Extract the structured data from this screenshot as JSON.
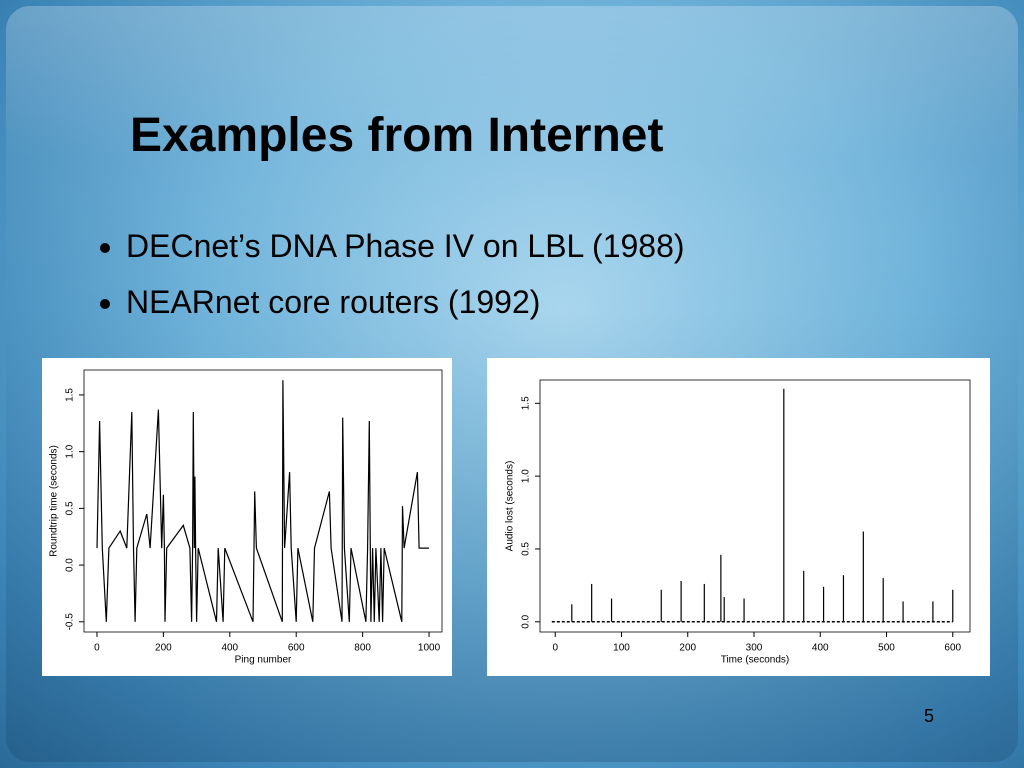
{
  "slide": {
    "title": "Examples from Internet",
    "bullets": [
      "DECnet’s DNA Phase IV on LBL (1988)",
      "NEARnet core routers (1992)"
    ],
    "page_number": "5"
  },
  "chart_data": [
    {
      "type": "line",
      "x_label": "Ping number",
      "y_label": "Roundtrip time (seconds)",
      "color": "#000000",
      "xlim": [
        -39,
        1039
      ],
      "xticks": [
        0,
        200,
        400,
        600,
        800,
        1000
      ],
      "ylim": [
        -0.59,
        1.72
      ],
      "yticks": [
        -0.5,
        {
          "value": 0,
          "label": "0.0"
        },
        0.5,
        {
          "value": 1,
          "label": "1.0"
        },
        1.5
      ],
      "x": [
        0,
        8,
        16,
        28,
        36,
        70,
        90,
        105,
        110,
        115,
        120,
        150,
        160,
        185,
        195,
        200,
        203,
        205,
        210,
        260,
        280,
        285,
        288,
        290,
        293,
        295,
        297,
        300,
        305,
        360,
        365,
        380,
        385,
        470,
        473,
        475,
        480,
        558,
        560,
        565,
        580,
        585,
        600,
        605,
        650,
        655,
        700,
        705,
        738,
        740,
        745,
        760,
        765,
        810,
        815,
        820,
        823,
        825,
        830,
        835,
        840,
        850,
        855,
        860,
        865,
        918,
        920,
        925,
        965,
        970,
        1000
      ],
      "values": [
        0.15,
        1.27,
        0.15,
        -0.5,
        0.15,
        0.3,
        0.15,
        1.35,
        0.15,
        -0.5,
        0.15,
        0.45,
        0.15,
        1.37,
        0.15,
        0.62,
        0.15,
        -0.5,
        0.15,
        0.35,
        0.15,
        -0.5,
        0.15,
        1.35,
        0.15,
        0.78,
        0.15,
        -0.5,
        0.15,
        -0.5,
        0.15,
        -0.5,
        0.15,
        -0.5,
        0.15,
        0.65,
        0.15,
        -0.5,
        1.63,
        0.15,
        0.82,
        0.15,
        -0.5,
        0.15,
        -0.5,
        0.15,
        0.65,
        0.15,
        -0.5,
        1.3,
        0.15,
        -0.5,
        0.15,
        -0.5,
        0.15,
        1.27,
        0.15,
        -0.5,
        0.15,
        -0.5,
        0.15,
        -0.5,
        0.15,
        -0.5,
        0.15,
        -0.5,
        0.52,
        0.15,
        0.82,
        0.15,
        0.15
      ]
    },
    {
      "type": "stem",
      "x_label": "Time (seconds)",
      "y_label": "Audio lost (seconds)",
      "color": "#000000",
      "xlim": [
        -23,
        626
      ],
      "xticks": [
        0,
        100,
        200,
        300,
        400,
        500,
        600
      ],
      "ylim": [
        -0.07,
        1.66
      ],
      "yticks": [
        {
          "value": 0,
          "label": "0.0"
        },
        0.5,
        {
          "value": 1,
          "label": "1.0"
        },
        1.5
      ],
      "x": [
        25,
        55,
        85,
        160,
        190,
        225,
        250,
        255,
        285,
        345,
        375,
        405,
        435,
        465,
        495,
        525,
        570,
        600
      ],
      "values": [
        0.12,
        0.26,
        0.16,
        0.22,
        0.28,
        0.26,
        0.46,
        0.17,
        0.16,
        1.6,
        0.35,
        0.24,
        0.32,
        0.62,
        0.3,
        0.14,
        0.14,
        0.22
      ]
    }
  ]
}
